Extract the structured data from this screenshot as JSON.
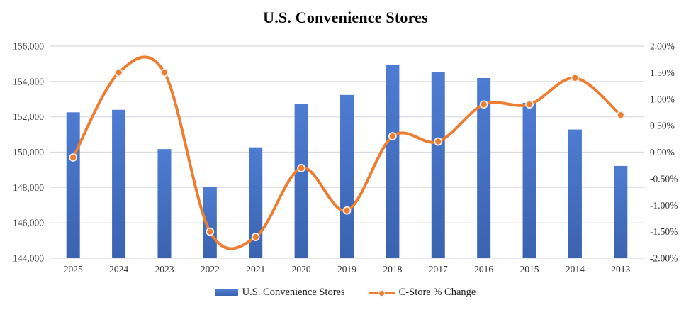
{
  "page": {
    "background": "#ffffff"
  },
  "chart_data": {
    "type": "combo-bar-line",
    "title": "U.S. Convenience Stores",
    "categories": [
      "2025",
      "2024",
      "2023",
      "2022",
      "2021",
      "2020",
      "2019",
      "2018",
      "2017",
      "2016",
      "2015",
      "2014",
      "2013"
    ],
    "series": [
      {
        "name": "U.S. Convenience Stores",
        "type": "bar",
        "axis": "left",
        "values": [
          152255,
          152396,
          150174,
          148026,
          150274,
          152720,
          153237,
          154958,
          154535,
          154195,
          152794,
          151282,
          149220
        ]
      },
      {
        "name": "C-Store % Change",
        "type": "line",
        "axis": "right",
        "values": [
          -0.1,
          1.5,
          1.5,
          -1.5,
          -1.6,
          -0.3,
          -1.1,
          0.3,
          0.2,
          0.9,
          0.9,
          1.4,
          0.7
        ]
      }
    ],
    "left_axis": {
      "min": 144000,
      "max": 156000,
      "step": 2000,
      "tick_labels": [
        "156,000",
        "154,000",
        "152,000",
        "150,000",
        "148,000",
        "146,000",
        "144,000"
      ]
    },
    "right_axis": {
      "min": -2.0,
      "max": 2.0,
      "step": 0.5,
      "tick_labels": [
        "2.00%",
        "1.50%",
        "1.00%",
        "0.50%",
        "0.00%",
        "-0.50%",
        "-1.00%",
        "-1.50%",
        "-2.00%"
      ]
    },
    "grid": true,
    "legend_position": "bottom",
    "line_smoothing": true
  },
  "colors": {
    "bar_top": "#4e7cd2",
    "bar_bottom": "#3a63af",
    "line": "#ed7d31",
    "marker_fill": "#ed7d31",
    "marker_ring": "#eeedeb",
    "gridline": "#d8dbe2",
    "axis_text": "#333333",
    "title_text": "#000000"
  }
}
